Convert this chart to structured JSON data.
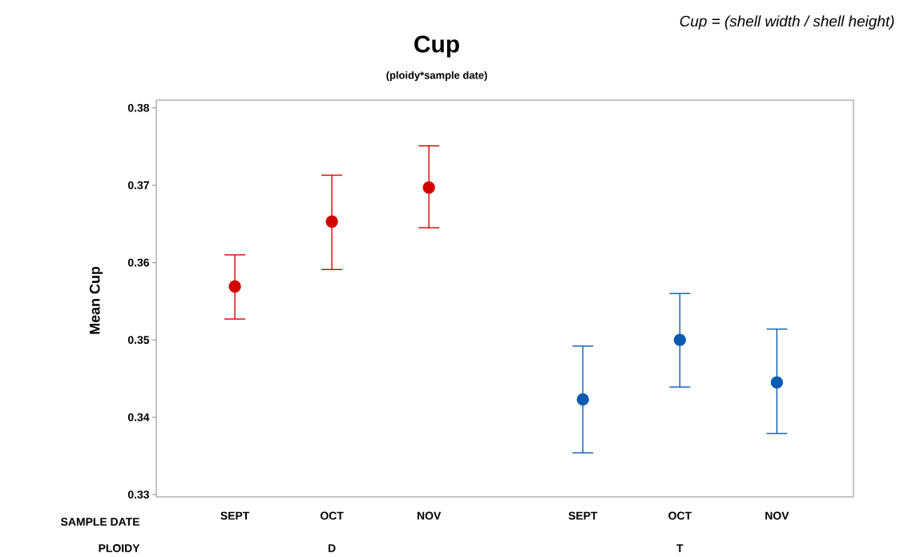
{
  "chart_data": {
    "type": "scatter",
    "title": "Cup",
    "subtitle": "(ploidy*sample date)",
    "ylabel": "Mean Cup",
    "annotations": [
      "Cup = (shell width / shell height)",
      "SAMPLE DATE",
      "PLOIDY",
      "D",
      "T"
    ],
    "categories": [
      "SEPT",
      "OCT",
      "NOV",
      "SEPT",
      "OCT",
      "NOV"
    ],
    "series": [
      {
        "color": "#d40000",
        "values": [
          0.3569,
          0.3653,
          0.3697,
          null,
          null,
          null
        ],
        "errors": [
          [
            0.3527,
            0.361
          ],
          [
            0.3591,
            0.3713
          ],
          [
            0.3645,
            0.3751
          ],
          null,
          null,
          null
        ]
      },
      {
        "color": "#0a5bb0",
        "values": [
          null,
          null,
          null,
          0.3423,
          0.35,
          0.3445
        ],
        "errors": [
          null,
          null,
          null,
          [
            0.3354,
            0.3492
          ],
          [
            0.3439,
            0.356
          ],
          [
            0.3379,
            0.3514
          ]
        ]
      }
    ],
    "ylim": [
      0.3297,
      0.381
    ],
    "yticks": [
      0.33,
      0.34,
      0.35,
      0.36,
      0.37,
      0.38
    ],
    "marker": "circle",
    "grid": false,
    "legend": false
  }
}
